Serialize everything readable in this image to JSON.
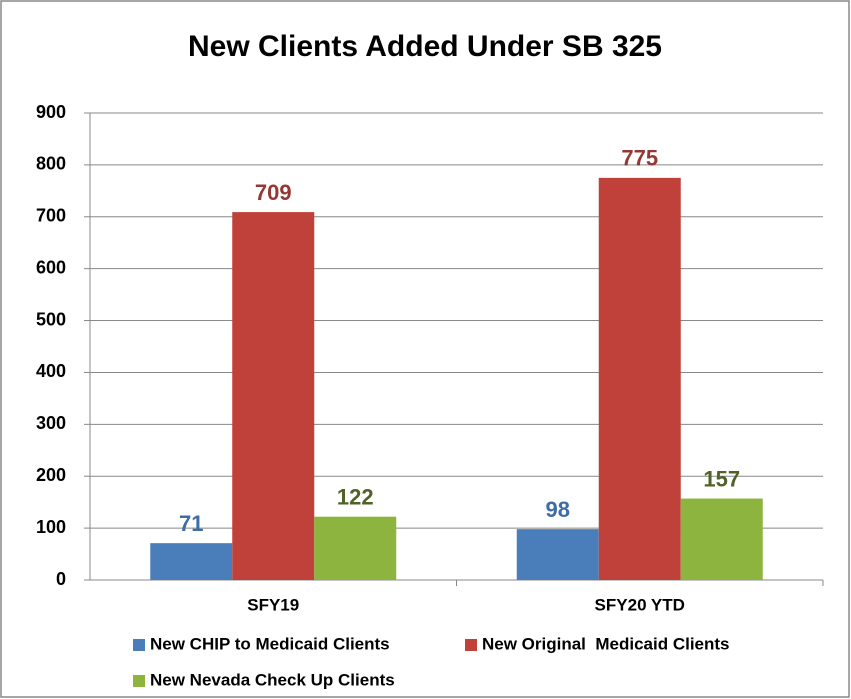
{
  "chart_data": {
    "type": "bar",
    "title": "New Clients Added Under SB 325",
    "categories": [
      "SFY19",
      "SFY20 YTD"
    ],
    "series": [
      {
        "name": "New CHIP to Medicaid Clients",
        "color": "#4a7ebb",
        "label_color": "#3d6ca6",
        "values": [
          71,
          98
        ]
      },
      {
        "name": "New Original  Medicaid Clients",
        "color": "#c0403a",
        "label_color": "#953735",
        "values": [
          709,
          775
        ]
      },
      {
        "name": "New Nevada Check Up Clients",
        "color": "#8db43e",
        "label_color": "#4f6228",
        "values": [
          122,
          157
        ]
      }
    ],
    "ylim": [
      0,
      900
    ],
    "yticks": [
      0,
      100,
      200,
      300,
      400,
      500,
      600,
      700,
      800,
      900
    ],
    "grid": true,
    "legend": "bottom"
  }
}
